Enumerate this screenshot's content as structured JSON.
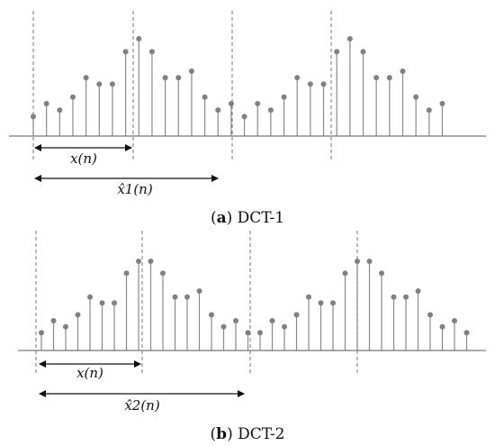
{
  "panels": [
    {
      "id": "a",
      "signal_label": "x(n)",
      "extended_label": "x̂1(n)",
      "caption_letter": "a",
      "caption_text": "DCT-1",
      "x_values": [
        3,
        5,
        4,
        6,
        9,
        8,
        8,
        13,
        15,
        13,
        9,
        9,
        10,
        6,
        4,
        5
      ],
      "sequence": [
        3,
        5,
        4,
        6,
        9,
        8,
        8,
        13,
        15,
        13,
        9,
        9,
        10,
        6,
        4,
        5,
        3,
        5,
        4,
        6,
        9,
        8,
        8,
        13,
        15,
        13,
        9,
        9,
        10,
        6,
        4,
        5
      ]
    },
    {
      "id": "b",
      "signal_label": "x(n)",
      "extended_label": "x̂2(n)",
      "caption_letter": "b",
      "caption_text": "DCT-2",
      "x_values": [
        3,
        5,
        4,
        6,
        9,
        8,
        8,
        13,
        15,
        15,
        13,
        9,
        9,
        10,
        6,
        4,
        5,
        3
      ],
      "sequence": [
        3,
        5,
        4,
        6,
        9,
        8,
        8,
        13,
        15,
        15,
        13,
        9,
        9,
        10,
        6,
        4,
        5,
        3,
        3,
        5,
        4,
        6,
        9,
        8,
        8,
        13,
        15,
        15,
        13,
        9,
        9,
        10,
        6,
        4,
        5,
        3
      ]
    }
  ],
  "colors": {
    "stem": "#8a8a8a",
    "dot": "#808080",
    "axis": "#777777",
    "dash": "#777777",
    "text": "#111111"
  }
}
